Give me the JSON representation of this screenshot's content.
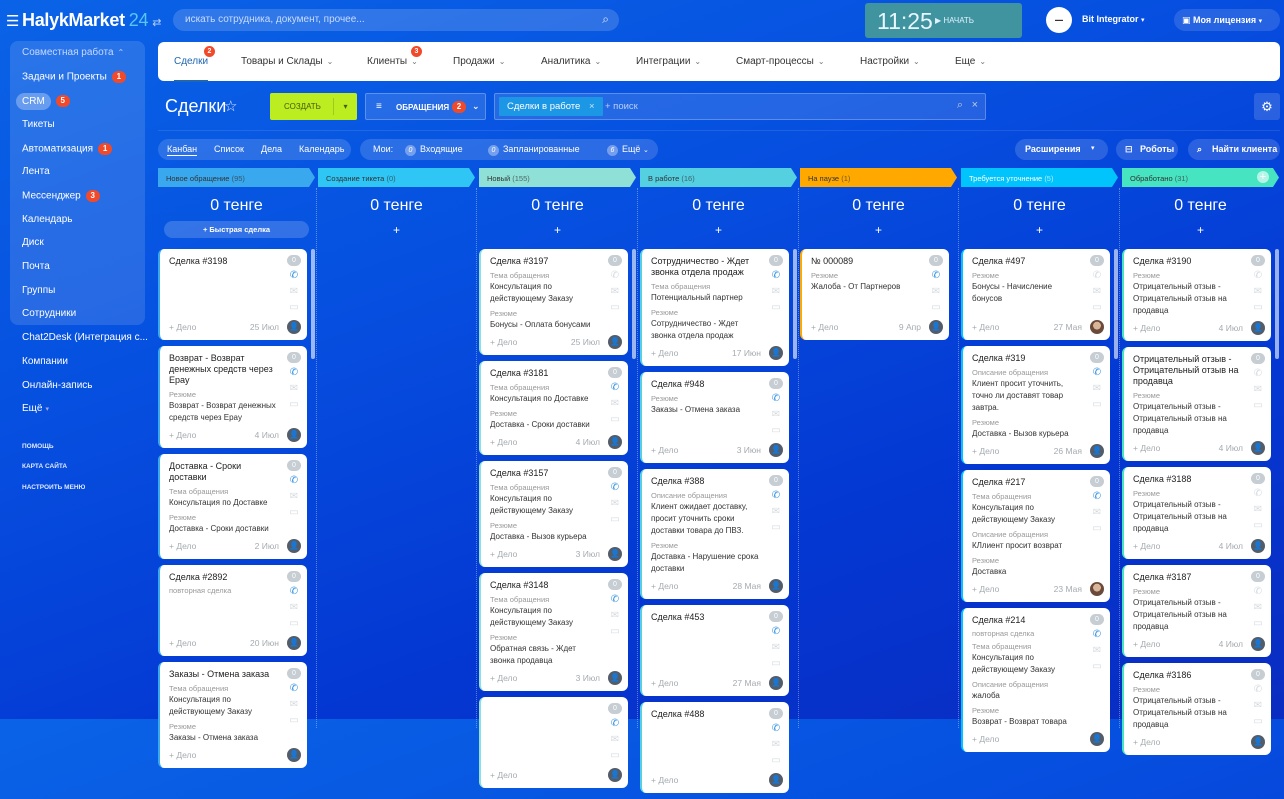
{
  "topbar": {
    "logo_main": "HalykMarket",
    "logo_num": "24",
    "search_placeholder": "искать сотрудника, документ, прочее...",
    "clock": "11:25",
    "start_label": "НАЧАТЬ",
    "user_name": "Bit Integrator",
    "license_label": "Моя лицензия"
  },
  "sidebar": {
    "group": "Совместная работа",
    "items": [
      {
        "label": "Задачи и Проекты",
        "badge": "1"
      },
      {
        "label": "CRM",
        "badge": "5",
        "active": true
      },
      {
        "label": "Тикеты"
      },
      {
        "label": "Автоматизация",
        "badge": "1"
      },
      {
        "label": "Лента"
      },
      {
        "label": "Мессенджер",
        "badge": "3"
      },
      {
        "label": "Календарь"
      },
      {
        "label": "Диск"
      },
      {
        "label": "Почта"
      },
      {
        "label": "Группы"
      },
      {
        "label": "Сотрудники"
      },
      {
        "label": "Chat2Desk (Интеграция с..."
      },
      {
        "label": "Компании"
      },
      {
        "label": "Онлайн-запись"
      },
      {
        "label": "Ещё"
      }
    ],
    "footer": [
      "ПОМОЩЬ",
      "КАРТА САЙТА",
      "НАСТРОИТЬ МЕНЮ"
    ]
  },
  "nav": {
    "tabs": [
      {
        "label": "Сделки",
        "badge": "2",
        "active": true
      },
      {
        "label": "Товары и Склады",
        "chev": true
      },
      {
        "label": "Клиенты",
        "chev": true,
        "badge": "3"
      },
      {
        "label": "Продажи",
        "chev": true
      },
      {
        "label": "Аналитика",
        "chev": true
      },
      {
        "label": "Интеграции",
        "chev": true
      },
      {
        "label": "Смарт-процессы",
        "chev": true
      },
      {
        "label": "Настройки",
        "chev": true
      },
      {
        "label": "Еще",
        "chev": true
      }
    ]
  },
  "toolbar": {
    "title": "Сделки",
    "create_label": "СОЗДАТЬ",
    "appeals_label": "ОБРАЩЕНИЯ",
    "appeals_badge": "2",
    "filter_chip": "Сделки в работе",
    "search_placeholder": "+ поиск",
    "views": [
      "Канбан",
      "Список",
      "Дела",
      "Календарь"
    ],
    "active_view": "Канбан",
    "mine_label": "Мои:",
    "counters": [
      {
        "count": "0",
        "label": "Входящие"
      },
      {
        "count": "0",
        "label": "Запланированные"
      },
      {
        "count": "6",
        "label": "Ещё"
      }
    ],
    "extensions_label": "Расширения",
    "robots_label": "Роботы",
    "find_client_label": "Найти клиента"
  },
  "colors": {
    "accent": "#2067b0",
    "create": "#bbed21",
    "badge": "#f04a2a"
  },
  "kanban": {
    "add_deal_label": "+ Дело",
    "quick_deal_label": "+ Быстрая сделка",
    "columns": [
      {
        "name": "Новое обращение",
        "count": "(95)",
        "color": "#3aa8ee",
        "text": "#333",
        "sum": "0 тенге",
        "cards": [
          {
            "title": "Сделка #3198",
            "fields": [],
            "date": "25 Июл",
            "phone": true
          },
          {
            "title": "Возврат - Возврат денежных средств через Epay",
            "fields": [
              {
                "label": "Резюме",
                "value": "Возврат - Возврат денежных средств через Epay"
              }
            ],
            "date": "4 Июл",
            "phone": true
          },
          {
            "title": "Доставка - Сроки доставки",
            "fields": [
              {
                "label": "Тема обращения",
                "value": "Консультация по Доставке"
              },
              {
                "label": "Резюме",
                "value": "Доставка - Сроки доставки"
              }
            ],
            "date": "2 Июл",
            "phone": true
          },
          {
            "title": "Сделка #2892",
            "sub": "повторная сделка",
            "fields": [],
            "date": "20 Июн",
            "phone": true
          },
          {
            "title": "Заказы - Отмена заказа",
            "fields": [
              {
                "label": "Тема обращения",
                "value": "Консультация по действующему Заказу"
              },
              {
                "label": "Резюме",
                "value": "Заказы - Отмена заказа"
              }
            ],
            "date": "",
            "phone": true
          }
        ]
      },
      {
        "name": "Создание тикета",
        "count": "(0)",
        "color": "#2fc6f6",
        "text": "#333",
        "sum": "0 тенге",
        "cards": []
      },
      {
        "name": "Новый",
        "count": "(155)",
        "color": "#8fe0d6",
        "text": "#333",
        "sum": "0 тенге",
        "cards": [
          {
            "title": "Сделка #3197",
            "fields": [
              {
                "label": "Тема обращения",
                "value": "Консультация по действующему Заказу"
              },
              {
                "label": "Резюме",
                "value": "Бонусы - Оплата бонусами"
              }
            ],
            "date": "25 Июл",
            "phone": false
          },
          {
            "title": "Сделка #3181",
            "fields": [
              {
                "label": "Тема обращения",
                "value": "Консультация по Доставке"
              },
              {
                "label": "Резюме",
                "value": "Доставка - Сроки доставки"
              }
            ],
            "date": "4 Июл",
            "phone": true
          },
          {
            "title": "Сделка #3157",
            "fields": [
              {
                "label": "Тема обращения",
                "value": "Консультация по действующему Заказу"
              },
              {
                "label": "Резюме",
                "value": "Доставка - Вызов курьера"
              }
            ],
            "date": "3 Июл",
            "phone": true
          },
          {
            "title": "Сделка #3148",
            "fields": [
              {
                "label": "Тема обращения",
                "value": "Консультация по действующему Заказу"
              },
              {
                "label": "Резюме",
                "value": "Обратная связь - Ждет звонка продавца"
              }
            ],
            "date": "3 Июл",
            "phone": true
          },
          {
            "title": "",
            "fields": [],
            "date": "",
            "phone": true
          }
        ]
      },
      {
        "name": "В работе",
        "count": "(16)",
        "color": "#55d0e0",
        "text": "#333",
        "sum": "0 тенге",
        "cards": [
          {
            "title": "Сотрудничество - Ждет звонка отдела продаж",
            "fields": [
              {
                "label": "Тема обращения",
                "value": "Потенциальный партнер"
              },
              {
                "label": "Резюме",
                "value": "Сотрудничество - Ждет звонка отдела продаж"
              }
            ],
            "date": "17 Июн",
            "phone": true
          },
          {
            "title": "Сделка #948",
            "fields": [
              {
                "label": "Резюме",
                "value": "Заказы - Отмена заказа"
              }
            ],
            "date": "3 Июн",
            "phone": true
          },
          {
            "title": "Сделка #388",
            "fields": [
              {
                "label": "Описание обращения",
                "value": "Клиент ожидает доставку, просит уточнить сроки доставки товара до ПВЗ."
              },
              {
                "label": "Резюме",
                "value": "Доставка - Нарушение срока доставки"
              }
            ],
            "date": "28 Мая",
            "phone": true
          },
          {
            "title": "Сделка #453",
            "fields": [],
            "date": "27 Мая",
            "phone": true
          },
          {
            "title": "Сделка #488",
            "fields": [],
            "date": "",
            "phone": true
          }
        ]
      },
      {
        "name": "На паузе",
        "count": "(1)",
        "color": "#ffa900",
        "text": "#333",
        "sum": "0 тенге",
        "cards": [
          {
            "title": "№ 000089",
            "fields": [
              {
                "label": "Резюме",
                "value": "Жалоба - От Партнеров"
              }
            ],
            "date": "9 Апр",
            "phone": true
          }
        ]
      },
      {
        "name": "Требуется уточнение",
        "count": "(5)",
        "color": "#00c4fb",
        "text": "#fff",
        "sum": "0 тенге",
        "cards": [
          {
            "title": "Сделка #497",
            "fields": [
              {
                "label": "Резюме",
                "value": "Бонусы - Начисление бонусов"
              }
            ],
            "date": "27 Мая",
            "phone": false,
            "photo": true
          },
          {
            "title": "Сделка #319",
            "fields": [
              {
                "label": "Описание обращения",
                "value": "Клиент просит уточнить, точно ли доставят товар завтра."
              },
              {
                "label": "Резюме",
                "value": "Доставка - Вызов курьера"
              }
            ],
            "date": "26 Мая",
            "phone": true
          },
          {
            "title": "Сделка #217",
            "fields": [
              {
                "label": "Тема обращения",
                "value": "Консультация по действующему Заказу"
              },
              {
                "label": "Описание обращения",
                "value": "КЛлиент просит возврат"
              },
              {
                "label": "Резюме",
                "value": "Доставка"
              }
            ],
            "date": "23 Мая",
            "phone": true,
            "photo": true
          },
          {
            "title": "Сделка #214",
            "sub": "повторная сделка",
            "fields": [
              {
                "label": "Тема обращения",
                "value": "Консультация по действующему Заказу"
              },
              {
                "label": "Описание обращения",
                "value": "жалоба"
              },
              {
                "label": "Резюме",
                "value": "Возврат - Возврат товара"
              }
            ],
            "date": "",
            "phone": true
          }
        ]
      },
      {
        "name": "Обработано",
        "count": "(31)",
        "color": "#47e4c2",
        "text": "#333",
        "sum": "0 тенге",
        "cards": [
          {
            "title": "Сделка #3190",
            "fields": [
              {
                "label": "Резюме",
                "value": "Отрицательный отзыв - Отрицательный отзыв на продавца"
              }
            ],
            "date": "4 Июл",
            "phone": false
          },
          {
            "title": "Отрицательный отзыв - Отрицательный отзыв на продавца",
            "fields": [
              {
                "label": "Резюме",
                "value": "Отрицательный отзыв - Отрицательный отзыв на продавца"
              }
            ],
            "date": "4 Июл",
            "phone": false
          },
          {
            "title": "Сделка #3188",
            "fields": [
              {
                "label": "Резюме",
                "value": "Отрицательный отзыв - Отрицательный отзыв на продавца"
              }
            ],
            "date": "4 Июл",
            "phone": false
          },
          {
            "title": "Сделка #3187",
            "fields": [
              {
                "label": "Резюме",
                "value": "Отрицательный отзыв - Отрицательный отзыв на продавца"
              }
            ],
            "date": "4 Июл",
            "phone": false
          },
          {
            "title": "Сделка #3186",
            "fields": [
              {
                "label": "Резюме",
                "value": "Отрицательный отзыв - Отрицательный отзыв на продавца"
              }
            ],
            "date": "",
            "phone": false
          }
        ]
      }
    ]
  }
}
